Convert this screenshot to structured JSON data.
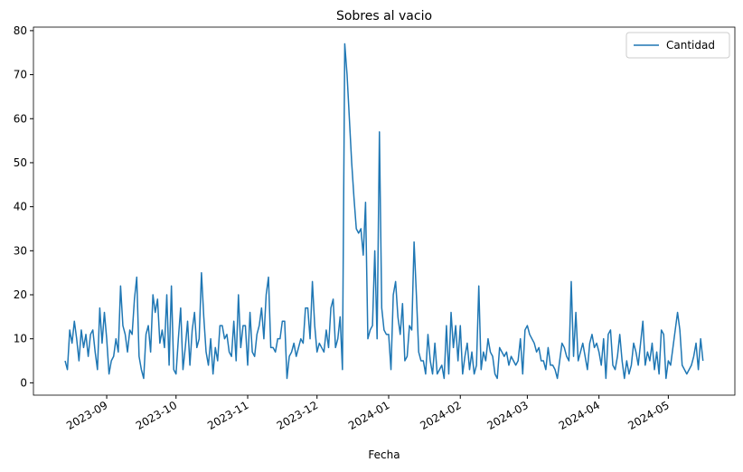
{
  "chart_data": {
    "type": "line",
    "title": "Sobres al vacio",
    "x_label": "Fecha",
    "x": [
      19583,
      19584,
      19585,
      19586,
      19587,
      19588,
      19589,
      19590,
      19591,
      19592,
      19593,
      19594,
      19595,
      19596,
      19597,
      19598,
      19599,
      19600,
      19601,
      19602,
      19603,
      19604,
      19605,
      19606,
      19607,
      19608,
      19609,
      19610,
      19611,
      19612,
      19613,
      19614,
      19615,
      19616,
      19617,
      19618,
      19619,
      19620,
      19621,
      19622,
      19623,
      19624,
      19625,
      19626,
      19627,
      19628,
      19629,
      19630,
      19631,
      19632,
      19633,
      19634,
      19635,
      19636,
      19637,
      19638,
      19639,
      19640,
      19641,
      19642,
      19643,
      19644,
      19645,
      19646,
      19647,
      19648,
      19649,
      19650,
      19651,
      19652,
      19653,
      19654,
      19655,
      19656,
      19657,
      19658,
      19659,
      19660,
      19661,
      19662,
      19663,
      19664,
      19665,
      19666,
      19667,
      19668,
      19669,
      19670,
      19671,
      19672,
      19673,
      19674,
      19675,
      19676,
      19677,
      19678,
      19679,
      19680,
      19681,
      19682,
      19683,
      19684,
      19685,
      19686,
      19687,
      19688,
      19689,
      19690,
      19691,
      19692,
      19693,
      19694,
      19695,
      19696,
      19697,
      19698,
      19699,
      19700,
      19701,
      19702,
      19703,
      19704,
      19705,
      19706,
      19707,
      19708,
      19709,
      19710,
      19711,
      19712,
      19713,
      19714,
      19715,
      19716,
      19717,
      19718,
      19719,
      19720,
      19721,
      19722,
      19723,
      19724,
      19725,
      19726,
      19727,
      19728,
      19729,
      19730,
      19731,
      19732,
      19733,
      19734,
      19735,
      19736,
      19737,
      19738,
      19739,
      19740,
      19741,
      19742,
      19743,
      19744,
      19745,
      19746,
      19747,
      19748,
      19749,
      19750,
      19751,
      19752,
      19753,
      19754,
      19755,
      19756,
      19757,
      19758,
      19759,
      19760,
      19761,
      19762,
      19763,
      19764,
      19765,
      19766,
      19767,
      19768,
      19769,
      19770,
      19771,
      19772,
      19773,
      19774,
      19775,
      19776,
      19777,
      19778,
      19779,
      19780,
      19781,
      19782,
      19783,
      19784,
      19785,
      19786,
      19787,
      19788,
      19789,
      19790,
      19791,
      19792,
      19793,
      19794,
      19795,
      19796,
      19797,
      19798,
      19799,
      19800,
      19801,
      19802,
      19803,
      19804,
      19805,
      19806,
      19807,
      19808,
      19809,
      19810,
      19811,
      19812,
      19813,
      19814,
      19815,
      19816,
      19817,
      19818,
      19819,
      19820,
      19821,
      19822,
      19823,
      19824,
      19825,
      19826,
      19827,
      19828,
      19829,
      19830,
      19831,
      19832,
      19833,
      19834,
      19835,
      19836,
      19837,
      19838,
      19839,
      19840,
      19841,
      19842,
      19843,
      19844,
      19845,
      19846,
      19847,
      19848,
      19849,
      19850,
      19851,
      19852,
      19853,
      19854,
      19855,
      19856,
      19857,
      19858,
      19859
    ],
    "series": [
      {
        "name": "Cantidad",
        "color": "#1f77b4",
        "values": [
          5,
          3,
          12,
          9,
          14,
          10,
          5,
          12,
          8,
          11,
          6,
          11,
          12,
          7,
          3,
          17,
          9,
          16,
          10,
          2,
          5,
          6,
          10,
          7,
          22,
          13,
          11,
          7,
          12,
          11,
          19,
          24,
          6,
          3,
          1,
          11,
          13,
          7,
          20,
          16,
          19,
          9,
          12,
          8,
          20,
          4,
          22,
          3,
          2,
          10,
          17,
          3,
          8,
          14,
          4,
          12,
          16,
          8,
          10,
          25,
          15,
          7,
          4,
          10,
          2,
          8,
          5,
          13,
          13,
          10,
          11,
          7,
          6,
          14,
          5,
          20,
          8,
          13,
          13,
          4,
          16,
          7,
          6,
          11,
          13,
          17,
          10,
          20,
          24,
          8,
          8,
          7,
          10,
          10,
          14,
          14,
          1,
          6,
          7,
          9,
          6,
          8,
          10,
          9,
          17,
          17,
          10,
          23,
          13,
          7,
          9,
          8,
          7,
          12,
          8,
          17,
          19,
          8,
          10,
          15,
          3,
          77,
          70,
          60,
          50,
          42,
          35,
          34,
          35,
          29,
          41,
          10,
          12,
          13,
          30,
          10,
          57,
          17,
          12,
          11,
          11,
          3,
          20,
          23,
          15,
          11,
          18,
          5,
          6,
          13,
          12,
          32,
          20,
          7,
          5,
          5,
          2,
          11,
          5,
          2,
          9,
          2,
          3,
          4,
          1,
          13,
          2,
          16,
          8,
          13,
          5,
          13,
          2,
          6,
          9,
          3,
          7,
          2,
          4,
          22,
          3,
          7,
          5,
          10,
          7,
          6,
          2,
          1,
          8,
          7,
          6,
          7,
          4,
          6,
          5,
          4,
          5,
          10,
          2,
          12,
          13,
          11,
          10,
          9,
          7,
          8,
          5,
          5,
          3,
          8,
          4,
          4,
          3,
          1,
          5,
          9,
          8,
          6,
          5,
          23,
          6,
          16,
          5,
          7,
          9,
          6,
          3,
          9,
          11,
          8,
          9,
          7,
          4,
          10,
          1,
          11,
          12,
          4,
          3,
          6,
          11,
          5,
          1,
          5,
          2,
          4,
          9,
          7,
          4,
          9,
          14,
          4,
          7,
          5,
          9,
          3,
          7,
          2,
          12,
          11,
          1,
          5,
          4,
          8,
          12,
          16,
          12,
          4,
          3,
          2,
          3,
          4,
          6,
          9,
          3,
          10,
          5
        ]
      }
    ],
    "xlim": [
      19569.3,
      19872.8
    ],
    "xticks": [
      {
        "value": 19601,
        "label": "2023-09"
      },
      {
        "value": 19631,
        "label": "2023-10"
      },
      {
        "value": 19662,
        "label": "2023-11"
      },
      {
        "value": 19692,
        "label": "2023-12"
      },
      {
        "value": 19723,
        "label": "2024-01"
      },
      {
        "value": 19754,
        "label": "2024-02"
      },
      {
        "value": 19783,
        "label": "2024-03"
      },
      {
        "value": 19814,
        "label": "2024-04"
      },
      {
        "value": 19844,
        "label": "2024-05"
      }
    ],
    "ylim": [
      -2.8,
      80.8
    ],
    "yticks": [
      0,
      10,
      20,
      30,
      40,
      50,
      60,
      70,
      80
    ],
    "legend": "upper right"
  }
}
